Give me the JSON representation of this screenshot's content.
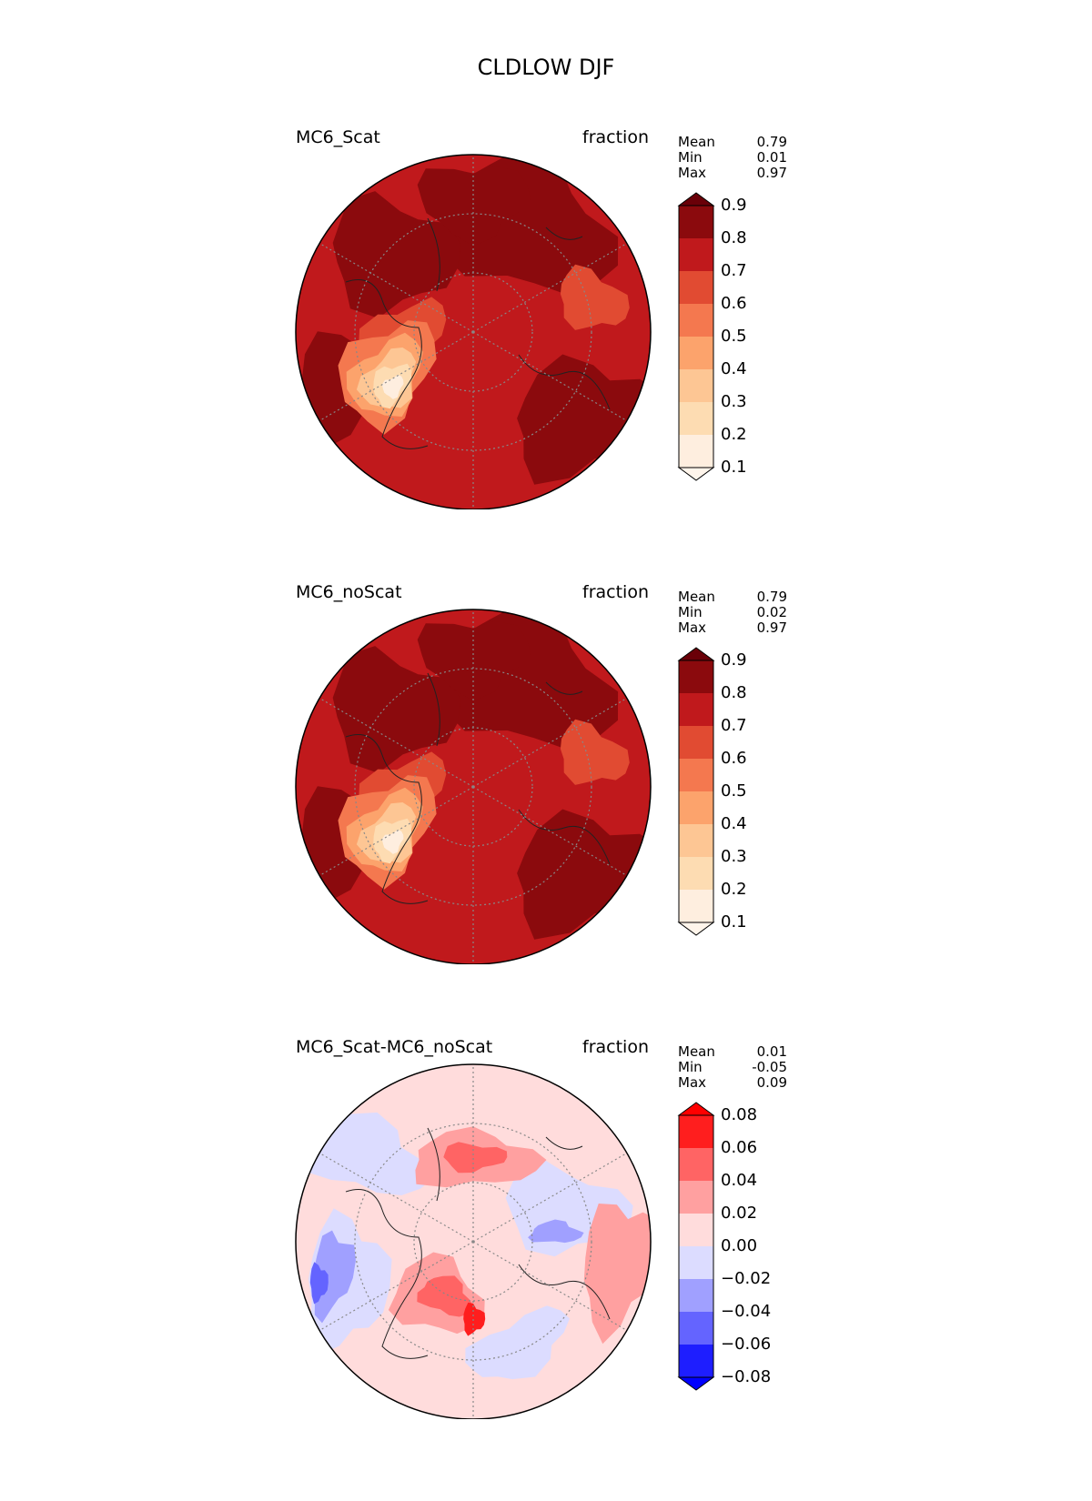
{
  "figure": {
    "title": "CLDLOW DJF"
  },
  "panels": [
    {
      "id": "scat",
      "title": "MC6_Scat",
      "units": "fraction",
      "stats": {
        "mean_label": "Mean",
        "mean": "0.79",
        "min_label": "Min",
        "min": "0.01",
        "max_label": "Max",
        "max": "0.97"
      },
      "colorbar": {
        "ticks": [
          "0.9",
          "0.8",
          "0.7",
          "0.6",
          "0.5",
          "0.4",
          "0.3",
          "0.2",
          "0.1"
        ],
        "colors": [
          "#8b0a0d",
          "#c0191c",
          "#e14b32",
          "#f4784f",
          "#fca36c",
          "#fdc694",
          "#fddcb2",
          "#feeedf"
        ],
        "extend_top": "#6a0008",
        "extend_bottom": "#fff5eb"
      },
      "map_colors": [
        "#c0191c",
        "#8b0a0d",
        "#e14b32",
        "#f4784f",
        "#fca36c",
        "#fdc694",
        "#fddcb2",
        "#feeedf"
      ]
    },
    {
      "id": "noscat",
      "title": "MC6_noScat",
      "units": "fraction",
      "stats": {
        "mean_label": "Mean",
        "mean": "0.79",
        "min_label": "Min",
        "min": "0.02",
        "max_label": "Max",
        "max": "0.97"
      },
      "colorbar": {
        "ticks": [
          "0.9",
          "0.8",
          "0.7",
          "0.6",
          "0.5",
          "0.4",
          "0.3",
          "0.2",
          "0.1"
        ],
        "colors": [
          "#8b0a0d",
          "#c0191c",
          "#e14b32",
          "#f4784f",
          "#fca36c",
          "#fdc694",
          "#fddcb2",
          "#feeedf"
        ],
        "extend_top": "#6a0008",
        "extend_bottom": "#fff5eb"
      },
      "map_colors": [
        "#c0191c",
        "#8b0a0d",
        "#e14b32",
        "#f4784f",
        "#fca36c",
        "#fdc694",
        "#fddcb2",
        "#feeedf"
      ]
    },
    {
      "id": "diff",
      "title": "MC6_Scat-MC6_noScat",
      "units": "fraction",
      "stats": {
        "mean_label": "Mean",
        "mean": "0.01",
        "min_label": "Min",
        "min": "-0.05",
        "max_label": "Max",
        "max": "0.09"
      },
      "colorbar": {
        "ticks": [
          "0.08",
          "0.06",
          "0.04",
          "0.02",
          "0.00",
          "−0.02",
          "−0.04",
          "−0.06",
          "−0.08"
        ],
        "colors": [
          "#ff1e1e",
          "#ff6464",
          "#ffa0a0",
          "#ffdcdc",
          "#dcdcff",
          "#a0a0ff",
          "#6464ff",
          "#1e1eff"
        ],
        "extend_top": "#ff0000",
        "extend_bottom": "#0000ff"
      },
      "map_colors": [
        "#ffdcdc",
        "#dcdcff",
        "#ffa0a0",
        "#a0a0ff",
        "#ff6464",
        "#6464ff",
        "#ff1e1e"
      ]
    }
  ]
}
